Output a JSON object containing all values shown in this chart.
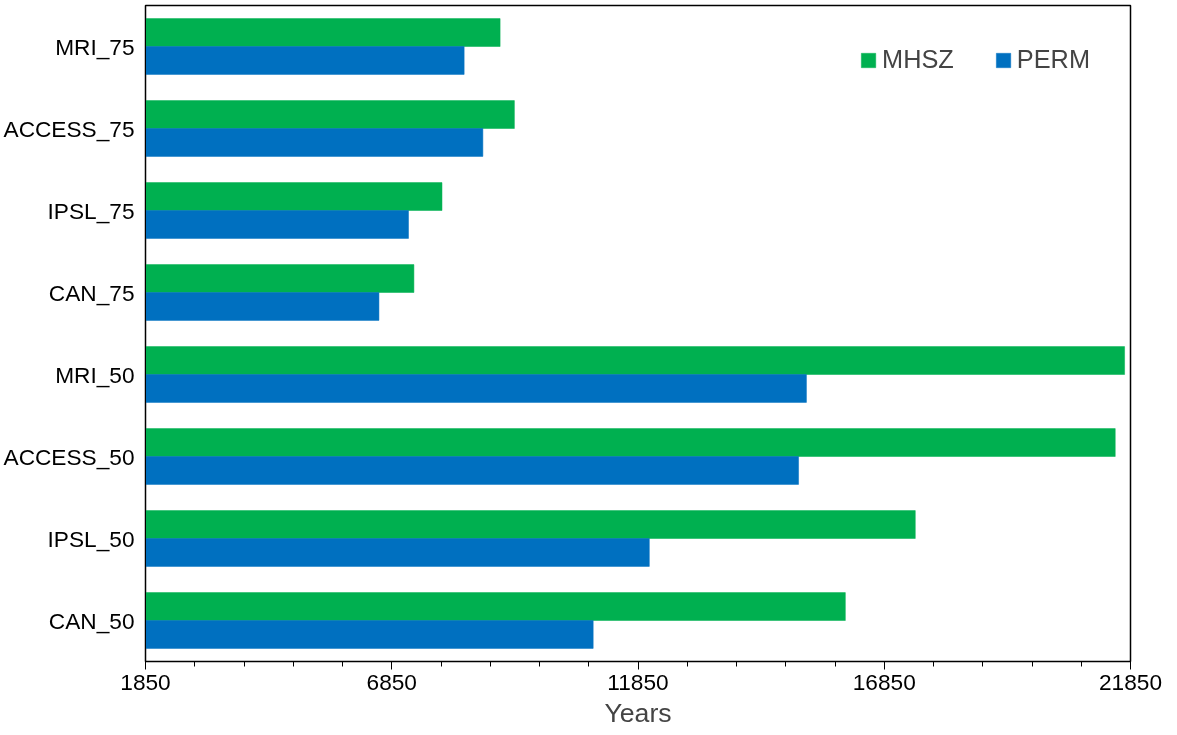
{
  "chart_data": {
    "type": "bar",
    "orientation": "horizontal",
    "xlabel": "Years",
    "categories": [
      "MRI_75",
      "ACCESS_75",
      "IPSL_75",
      "CAN_75",
      "MRI_50",
      "ACCESS_50",
      "IPSL_50",
      "CAN_50"
    ],
    "series": [
      {
        "name": "MHSZ",
        "color": "#00b050",
        "values": [
          9050,
          9340,
          7870,
          7300,
          21730,
          21540,
          17480,
          16060
        ]
      },
      {
        "name": "PERM",
        "color": "#0070c0",
        "values": [
          8320,
          8700,
          7190,
          6590,
          15270,
          15110,
          12080,
          10940
        ]
      }
    ],
    "xlim": [
      1850,
      21850
    ],
    "xticks": [
      1850,
      6850,
      11850,
      16850,
      21850
    ],
    "grid": false,
    "legend": "top right"
  }
}
